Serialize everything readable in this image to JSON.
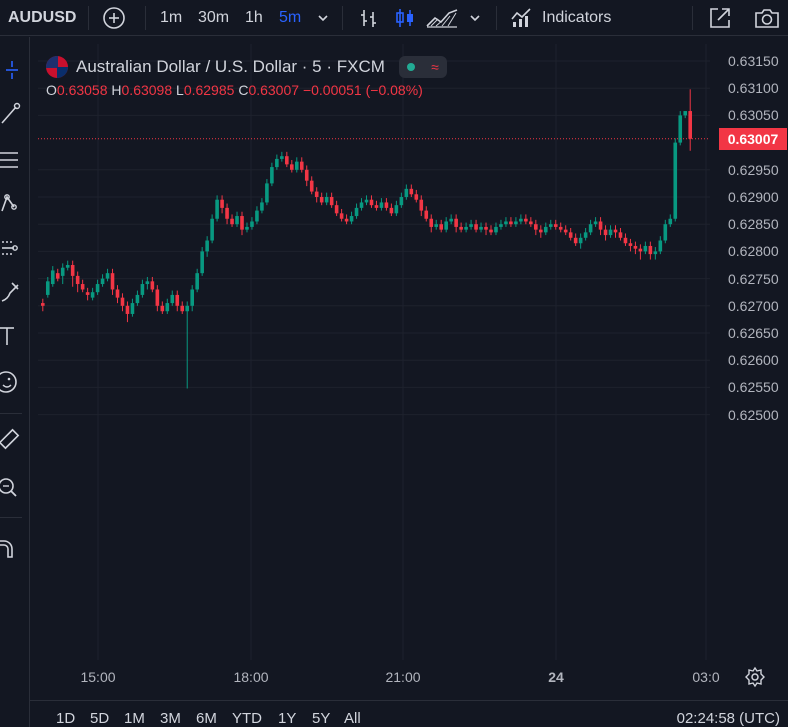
{
  "toolbar": {
    "symbol": "AUDUSD",
    "timeframes": [
      "1m",
      "30m",
      "1h",
      "5m"
    ],
    "active_timeframe": "5m",
    "indicators_label": "Indicators"
  },
  "legend": {
    "title": "Australian Dollar / U.S. Dollar · 5 · FXCM",
    "status_tilde": "≈",
    "o_label": "O",
    "o_value": "0.63058",
    "h_label": "H",
    "h_value": "0.63098",
    "l_label": "L",
    "l_value": "0.62985",
    "c_label": "C",
    "c_value": "0.63007",
    "change": "−0.00051 (−0.08%)"
  },
  "colors": {
    "background": "#131722",
    "up": "#089981",
    "down": "#f23645",
    "active": "#2962ff",
    "grid": "#1e222d"
  },
  "price_axis": {
    "labels": [
      "0.63150",
      "0.63100",
      "0.63050",
      "0.62950",
      "0.62900",
      "0.62850",
      "0.62800",
      "0.62750",
      "0.62700",
      "0.62650",
      "0.62600",
      "0.62550",
      "0.62500"
    ],
    "last_price": "0.63007"
  },
  "time_axis": {
    "labels": [
      "15:00",
      "18:00",
      "21:00",
      "24",
      "03:0"
    ]
  },
  "bottom": {
    "ranges": [
      "1D",
      "5D",
      "1M",
      "3M",
      "6M",
      "YTD",
      "1Y",
      "5Y",
      "All"
    ],
    "clock": "02:24:58 (UTC)"
  },
  "chart_data": {
    "type": "candlestick",
    "y_range": [
      0.6248,
      0.6318
    ],
    "points": [
      [
        0.62705,
        0.627,
        0.6269
      ],
      [
        0.6272,
        0.62745,
        0.62715
      ],
      [
        0.6274,
        0.62765,
        0.62735
      ],
      [
        0.6276,
        0.6275,
        0.62745
      ],
      [
        0.62755,
        0.6277,
        0.6274
      ],
      [
        0.6277,
        0.62775,
        0.62765
      ],
      [
        0.62775,
        0.62755,
        0.62735
      ],
      [
        0.62755,
        0.6274,
        0.62725
      ],
      [
        0.6274,
        0.6273,
        0.62725
      ],
      [
        0.62725,
        0.6272,
        0.6271
      ],
      [
        0.62715,
        0.62725,
        0.6271
      ],
      [
        0.62725,
        0.6274,
        0.6272
      ],
      [
        0.6274,
        0.6275,
        0.62735
      ],
      [
        0.6275,
        0.6276,
        0.62745
      ],
      [
        0.6276,
        0.6273,
        0.6272
      ],
      [
        0.6273,
        0.62715,
        0.62705
      ],
      [
        0.62715,
        0.627,
        0.6269
      ],
      [
        0.627,
        0.62685,
        0.6267
      ],
      [
        0.62685,
        0.62705,
        0.6268
      ],
      [
        0.62705,
        0.6272,
        0.627
      ],
      [
        0.6272,
        0.6274,
        0.62715
      ],
      [
        0.6274,
        0.62745,
        0.6273
      ],
      [
        0.62745,
        0.6273,
        0.62725
      ],
      [
        0.6273,
        0.627,
        0.6269
      ],
      [
        0.627,
        0.6269,
        0.62685
      ],
      [
        0.6269,
        0.62705,
        0.62685
      ],
      [
        0.62705,
        0.6272,
        0.627
      ],
      [
        0.6272,
        0.627,
        0.6269
      ],
      [
        0.627,
        0.6269,
        0.62685
      ],
      [
        0.6269,
        0.627,
        0.62548
      ],
      [
        0.627,
        0.6273,
        0.6269
      ],
      [
        0.6273,
        0.6276,
        0.62725
      ],
      [
        0.6276,
        0.628,
        0.62755
      ],
      [
        0.628,
        0.6282,
        0.6279
      ],
      [
        0.6282,
        0.6286,
        0.62815
      ],
      [
        0.6286,
        0.62895,
        0.62855
      ],
      [
        0.62895,
        0.6288,
        0.6287
      ],
      [
        0.6288,
        0.6286,
        0.6285
      ],
      [
        0.6286,
        0.6285,
        0.62845
      ],
      [
        0.6285,
        0.62865,
        0.62845
      ],
      [
        0.62865,
        0.6284,
        0.6283
      ],
      [
        0.6284,
        0.62845,
        0.62835
      ],
      [
        0.62845,
        0.62855,
        0.6284
      ],
      [
        0.62855,
        0.62875,
        0.6285
      ],
      [
        0.62875,
        0.6289,
        0.6287
      ],
      [
        0.6289,
        0.62925,
        0.62885
      ],
      [
        0.62925,
        0.62955,
        0.6292
      ],
      [
        0.62955,
        0.6297,
        0.6295
      ],
      [
        0.6297,
        0.62975,
        0.62965
      ],
      [
        0.62975,
        0.6296,
        0.62955
      ],
      [
        0.6296,
        0.6295,
        0.62945
      ],
      [
        0.6295,
        0.62965,
        0.62945
      ],
      [
        0.62965,
        0.6295,
        0.62945
      ],
      [
        0.6295,
        0.6293,
        0.6292
      ],
      [
        0.6293,
        0.6291,
        0.62905
      ],
      [
        0.6291,
        0.629,
        0.6289
      ],
      [
        0.629,
        0.6289,
        0.62885
      ],
      [
        0.6289,
        0.629,
        0.62885
      ],
      [
        0.629,
        0.62885,
        0.6288
      ],
      [
        0.62885,
        0.6287,
        0.62865
      ],
      [
        0.6287,
        0.6286,
        0.62855
      ],
      [
        0.6286,
        0.62855,
        0.6285
      ],
      [
        0.62855,
        0.62865,
        0.6285
      ],
      [
        0.62865,
        0.6288,
        0.6286
      ],
      [
        0.6288,
        0.6289,
        0.62875
      ],
      [
        0.6289,
        0.62895,
        0.62885
      ],
      [
        0.62895,
        0.62885,
        0.6288
      ],
      [
        0.62885,
        0.6288,
        0.62875
      ],
      [
        0.6288,
        0.6289,
        0.62875
      ],
      [
        0.6289,
        0.6288,
        0.62875
      ],
      [
        0.6288,
        0.6287,
        0.62865
      ],
      [
        0.6287,
        0.62885,
        0.62865
      ],
      [
        0.62885,
        0.629,
        0.6288
      ],
      [
        0.629,
        0.62915,
        0.62895
      ],
      [
        0.62915,
        0.62905,
        0.629
      ],
      [
        0.62905,
        0.62895,
        0.6289
      ],
      [
        0.62895,
        0.62875,
        0.62865
      ],
      [
        0.62875,
        0.6286,
        0.62855
      ],
      [
        0.6286,
        0.62845,
        0.62835
      ],
      [
        0.62845,
        0.6285,
        0.6284
      ],
      [
        0.6285,
        0.6284,
        0.62835
      ],
      [
        0.6284,
        0.62855,
        0.62835
      ],
      [
        0.62855,
        0.6286,
        0.6285
      ],
      [
        0.6286,
        0.62845,
        0.62835
      ],
      [
        0.62845,
        0.6284,
        0.62835
      ],
      [
        0.6284,
        0.62845,
        0.62835
      ],
      [
        0.62845,
        0.6285,
        0.6284
      ],
      [
        0.6285,
        0.6284,
        0.62835
      ],
      [
        0.6284,
        0.62845,
        0.62835
      ],
      [
        0.62845,
        0.6284,
        0.6283
      ],
      [
        0.6284,
        0.62835,
        0.6283
      ],
      [
        0.62835,
        0.62845,
        0.6283
      ],
      [
        0.62845,
        0.6285,
        0.6284
      ],
      [
        0.6285,
        0.62855,
        0.62845
      ],
      [
        0.62855,
        0.6285,
        0.62845
      ],
      [
        0.6285,
        0.62855,
        0.62845
      ],
      [
        0.62855,
        0.6286,
        0.6285
      ],
      [
        0.6286,
        0.62855,
        0.6285
      ],
      [
        0.62855,
        0.6285,
        0.62845
      ],
      [
        0.6285,
        0.6284,
        0.6283
      ],
      [
        0.6284,
        0.62835,
        0.62825
      ],
      [
        0.62835,
        0.62845,
        0.6283
      ],
      [
        0.62845,
        0.6285,
        0.6284
      ],
      [
        0.6285,
        0.62845,
        0.6284
      ],
      [
        0.62845,
        0.6284,
        0.62835
      ],
      [
        0.6284,
        0.62835,
        0.6283
      ],
      [
        0.62835,
        0.62825,
        0.6282
      ],
      [
        0.62825,
        0.62815,
        0.6281
      ],
      [
        0.62815,
        0.62825,
        0.62805
      ],
      [
        0.62825,
        0.62835,
        0.6282
      ],
      [
        0.62835,
        0.6285,
        0.6283
      ],
      [
        0.6285,
        0.62855,
        0.62845
      ],
      [
        0.62855,
        0.6284,
        0.6283
      ],
      [
        0.6284,
        0.6283,
        0.6282
      ],
      [
        0.6283,
        0.6284,
        0.62825
      ],
      [
        0.6284,
        0.62835,
        0.62825
      ],
      [
        0.62835,
        0.62825,
        0.6282
      ],
      [
        0.62825,
        0.62815,
        0.6281
      ],
      [
        0.62815,
        0.6281,
        0.628
      ],
      [
        0.6281,
        0.62805,
        0.62795
      ],
      [
        0.62805,
        0.628,
        0.62785
      ],
      [
        0.628,
        0.6281,
        0.62795
      ],
      [
        0.6281,
        0.62795,
        0.62785
      ],
      [
        0.62795,
        0.628,
        0.62785
      ],
      [
        0.628,
        0.6282,
        0.62795
      ],
      [
        0.6282,
        0.6285,
        0.62815
      ],
      [
        0.6285,
        0.6286,
        0.62845
      ],
      [
        0.6286,
        0.63,
        0.62855
      ],
      [
        0.63,
        0.6305,
        0.62995
      ],
      [
        0.6305,
        0.63058,
        0.63045
      ],
      [
        0.63058,
        0.63007,
        0.62985
      ]
    ]
  }
}
